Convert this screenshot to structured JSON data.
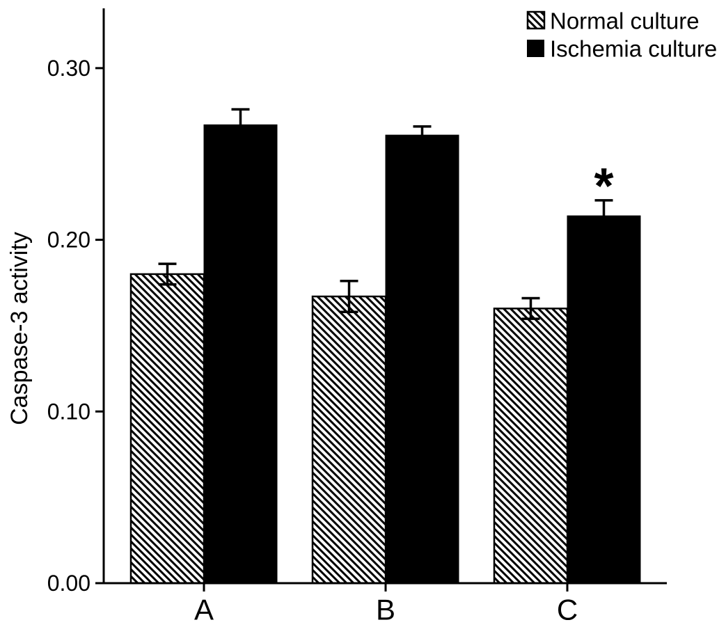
{
  "figure": {
    "background_color": "#ffffff",
    "foreground_color": "#000000"
  },
  "chart_data": {
    "type": "bar",
    "title": "",
    "xlabel": "",
    "ylabel": "Caspase-3 activity",
    "categories": [
      "A",
      "B",
      "C"
    ],
    "series": [
      {
        "name": "Normal culture",
        "fill": "diagonal-hatch",
        "values": [
          0.18,
          0.167,
          0.16
        ],
        "errors": [
          0.006,
          0.009,
          0.006
        ]
      },
      {
        "name": "Ischemia culture",
        "fill": "solid-black",
        "values": [
          0.267,
          0.261,
          0.214
        ],
        "errors": [
          0.009,
          0.005,
          0.009
        ]
      }
    ],
    "yticks": [
      0.0,
      0.1,
      0.2,
      0.3
    ],
    "ytick_labels": [
      "0.00",
      "0.10",
      "0.20",
      "0.30"
    ],
    "ylim": [
      0,
      0.335
    ],
    "grid": false,
    "legend_position": "top-right",
    "error_bar_style": "plus-minus-with-caps",
    "annotations": [
      {
        "text": "*",
        "category": "C",
        "series": "Ischemia culture"
      }
    ]
  }
}
